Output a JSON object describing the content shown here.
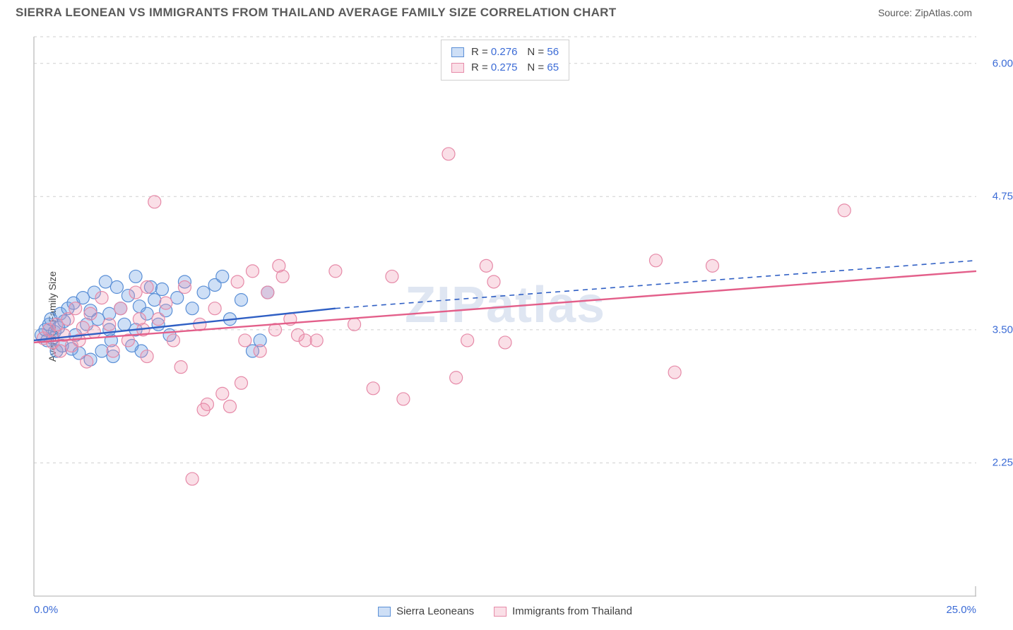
{
  "header": {
    "title": "SIERRA LEONEAN VS IMMIGRANTS FROM THAILAND AVERAGE FAMILY SIZE CORRELATION CHART",
    "source": "Source: ZipAtlas.com"
  },
  "ylabel": "Average Family Size",
  "watermark": "ZIPatlas",
  "chart": {
    "type": "scatter",
    "background_color": "#ffffff",
    "grid_color": "#cfcfcf",
    "axis_color": "#bdbdbd",
    "tick_label_color": "#3b6bd6",
    "axis_label_color": "#404040",
    "x": {
      "min": 0.0,
      "max": 25.0,
      "ticks": [
        {
          "v": 0.0,
          "label": "0.0%"
        },
        {
          "v": 25.0,
          "label": "25.0%"
        }
      ]
    },
    "y": {
      "min": 1.0,
      "max": 6.25,
      "ticks": [
        {
          "v": 2.25,
          "label": "2.25"
        },
        {
          "v": 3.5,
          "label": "3.50"
        },
        {
          "v": 4.75,
          "label": "4.75"
        },
        {
          "v": 6.0,
          "label": "6.00"
        }
      ],
      "gridlines": [
        1.0,
        2.25,
        3.5,
        4.75,
        6.0,
        6.25
      ]
    },
    "marker_radius": 9,
    "marker_stroke_width": 1.2,
    "line_width": 2.4
  },
  "series": [
    {
      "name": "Sierra Leoneans",
      "fill": "rgba(114,163,230,0.35)",
      "stroke": "#5a8fd6",
      "line_color": "#2f5fc4",
      "R": "0.276",
      "N": "56",
      "trend": {
        "x1": 0.0,
        "y1": 3.4,
        "x2": 8.0,
        "y2": 3.7,
        "dash_x2": 25.0,
        "dash_y2": 4.15
      },
      "points": [
        [
          0.2,
          3.45
        ],
        [
          0.3,
          3.5
        ],
        [
          0.35,
          3.4
        ],
        [
          0.4,
          3.55
        ],
        [
          0.45,
          3.6
        ],
        [
          0.5,
          3.42
        ],
        [
          0.55,
          3.48
        ],
        [
          0.6,
          3.3
        ],
        [
          0.65,
          3.52
        ],
        [
          0.7,
          3.65
        ],
        [
          0.75,
          3.35
        ],
        [
          0.8,
          3.58
        ],
        [
          0.9,
          3.7
        ],
        [
          1.0,
          3.32
        ],
        [
          1.05,
          3.75
        ],
        [
          1.1,
          3.45
        ],
        [
          1.2,
          3.28
        ],
        [
          1.3,
          3.8
        ],
        [
          1.4,
          3.55
        ],
        [
          1.5,
          3.22
        ],
        [
          1.6,
          3.85
        ],
        [
          1.7,
          3.6
        ],
        [
          1.8,
          3.3
        ],
        [
          1.9,
          3.95
        ],
        [
          2.0,
          3.65
        ],
        [
          2.05,
          3.4
        ],
        [
          2.1,
          3.25
        ],
        [
          2.2,
          3.9
        ],
        [
          2.3,
          3.7
        ],
        [
          2.4,
          3.55
        ],
        [
          2.5,
          3.82
        ],
        [
          2.6,
          3.35
        ],
        [
          2.7,
          4.0
        ],
        [
          2.8,
          3.72
        ],
        [
          2.85,
          3.3
        ],
        [
          3.0,
          3.65
        ],
        [
          3.1,
          3.9
        ],
        [
          3.2,
          3.78
        ],
        [
          3.3,
          3.55
        ],
        [
          3.4,
          3.88
        ],
        [
          3.5,
          3.68
        ],
        [
          3.6,
          3.45
        ],
        [
          3.8,
          3.8
        ],
        [
          4.0,
          3.95
        ],
        [
          4.2,
          3.7
        ],
        [
          4.5,
          3.85
        ],
        [
          4.8,
          3.92
        ],
        [
          5.0,
          4.0
        ],
        [
          5.2,
          3.6
        ],
        [
          5.5,
          3.78
        ],
        [
          5.8,
          3.3
        ],
        [
          6.0,
          3.4
        ],
        [
          6.2,
          3.85
        ],
        [
          2.0,
          3.5
        ],
        [
          1.5,
          3.68
        ],
        [
          2.7,
          3.5
        ]
      ]
    },
    {
      "name": "Immigrants from Thailand",
      "fill": "rgba(240,150,175,0.30)",
      "stroke": "#e68aa8",
      "line_color": "#e35f8a",
      "R": "0.275",
      "N": "65",
      "trend": {
        "x1": 0.0,
        "y1": 3.38,
        "x2": 25.0,
        "y2": 4.05
      },
      "points": [
        [
          0.25,
          3.42
        ],
        [
          0.4,
          3.5
        ],
        [
          0.5,
          3.38
        ],
        [
          0.6,
          3.55
        ],
        [
          0.7,
          3.3
        ],
        [
          0.8,
          3.45
        ],
        [
          0.9,
          3.6
        ],
        [
          1.0,
          3.35
        ],
        [
          1.1,
          3.7
        ],
        [
          1.2,
          3.4
        ],
        [
          1.3,
          3.52
        ],
        [
          1.4,
          3.2
        ],
        [
          1.5,
          3.65
        ],
        [
          1.6,
          3.48
        ],
        [
          1.8,
          3.8
        ],
        [
          2.0,
          3.55
        ],
        [
          2.1,
          3.3
        ],
        [
          2.3,
          3.7
        ],
        [
          2.5,
          3.4
        ],
        [
          2.7,
          3.85
        ],
        [
          2.9,
          3.5
        ],
        [
          3.0,
          3.25
        ],
        [
          3.2,
          4.7
        ],
        [
          3.3,
          3.6
        ],
        [
          3.5,
          3.75
        ],
        [
          3.7,
          3.4
        ],
        [
          3.9,
          3.15
        ],
        [
          4.0,
          3.9
        ],
        [
          4.2,
          2.1
        ],
        [
          4.4,
          3.55
        ],
        [
          4.6,
          2.8
        ],
        [
          4.8,
          3.7
        ],
        [
          5.0,
          2.9
        ],
        [
          5.2,
          2.78
        ],
        [
          5.4,
          3.95
        ],
        [
          5.6,
          3.4
        ],
        [
          5.8,
          4.05
        ],
        [
          6.0,
          3.3
        ],
        [
          6.2,
          3.85
        ],
        [
          6.4,
          3.5
        ],
        [
          6.6,
          4.0
        ],
        [
          6.8,
          3.6
        ],
        [
          7.0,
          3.45
        ],
        [
          7.5,
          3.4
        ],
        [
          8.0,
          4.05
        ],
        [
          8.5,
          3.55
        ],
        [
          9.0,
          2.95
        ],
        [
          9.5,
          4.0
        ],
        [
          9.8,
          2.85
        ],
        [
          11.0,
          5.15
        ],
        [
          11.2,
          3.05
        ],
        [
          11.5,
          3.4
        ],
        [
          12.0,
          4.1
        ],
        [
          12.2,
          3.95
        ],
        [
          12.5,
          3.38
        ],
        [
          16.5,
          4.15
        ],
        [
          17.0,
          3.1
        ],
        [
          18.0,
          4.1
        ],
        [
          21.5,
          4.62
        ],
        [
          4.5,
          2.75
        ],
        [
          5.5,
          3.0
        ],
        [
          6.5,
          4.1
        ],
        [
          7.2,
          3.4
        ],
        [
          3.0,
          3.9
        ],
        [
          2.8,
          3.6
        ]
      ]
    }
  ],
  "bottom_legend": [
    {
      "label": "Sierra Leoneans",
      "fill": "rgba(114,163,230,0.35)",
      "stroke": "#5a8fd6"
    },
    {
      "label": "Immigrants from Thailand",
      "fill": "rgba(240,150,175,0.30)",
      "stroke": "#e68aa8"
    }
  ]
}
